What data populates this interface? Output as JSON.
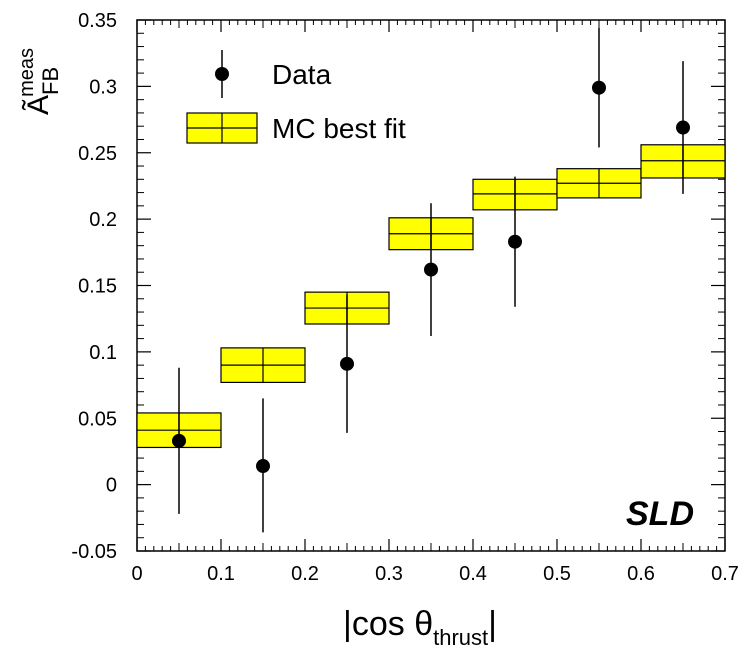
{
  "chart_data": {
    "type": "scatter",
    "xlabel": {
      "main": "|cos θ",
      "sub": "thrust",
      "end": "|"
    },
    "ylabel": {
      "main": "Ã",
      "sub": "FB",
      "sup": "meas"
    },
    "xlim": [
      0,
      0.7
    ],
    "ylim": [
      -0.05,
      0.35
    ],
    "xticks": [
      "0",
      "0.1",
      "0.2",
      "0.3",
      "0.4",
      "0.5",
      "0.6",
      "0.7"
    ],
    "yticks": [
      "-0.05",
      "0",
      "0.05",
      "0.1",
      "0.15",
      "0.2",
      "0.25",
      "0.3",
      "0.35"
    ],
    "series": [
      {
        "name": "Data",
        "marker": "filled-circle",
        "points": [
          {
            "x": 0.05,
            "y": 0.033,
            "ylow": -0.022,
            "yhigh": 0.088
          },
          {
            "x": 0.15,
            "y": 0.014,
            "ylow": -0.036,
            "yhigh": 0.065
          },
          {
            "x": 0.25,
            "y": 0.091,
            "ylow": 0.039,
            "yhigh": 0.143
          },
          {
            "x": 0.35,
            "y": 0.162,
            "ylow": 0.112,
            "yhigh": 0.212
          },
          {
            "x": 0.45,
            "y": 0.183,
            "ylow": 0.134,
            "yhigh": 0.232
          },
          {
            "x": 0.55,
            "y": 0.299,
            "ylow": 0.254,
            "yhigh": 0.344
          },
          {
            "x": 0.65,
            "y": 0.269,
            "ylow": 0.219,
            "yhigh": 0.319
          }
        ]
      },
      {
        "name": "MC best fit",
        "marker": "yellow-box",
        "color": "#ffff00",
        "boxes": [
          {
            "xlow": 0.0,
            "xhigh": 0.1,
            "y": 0.041,
            "ylow": 0.028,
            "yhigh": 0.054
          },
          {
            "xlow": 0.1,
            "xhigh": 0.2,
            "y": 0.09,
            "ylow": 0.077,
            "yhigh": 0.103
          },
          {
            "xlow": 0.2,
            "xhigh": 0.3,
            "y": 0.133,
            "ylow": 0.121,
            "yhigh": 0.145
          },
          {
            "xlow": 0.3,
            "xhigh": 0.4,
            "y": 0.189,
            "ylow": 0.177,
            "yhigh": 0.201
          },
          {
            "xlow": 0.4,
            "xhigh": 0.5,
            "y": 0.219,
            "ylow": 0.207,
            "yhigh": 0.23
          },
          {
            "xlow": 0.5,
            "xhigh": 0.6,
            "y": 0.227,
            "ylow": 0.216,
            "yhigh": 0.238
          },
          {
            "xlow": 0.6,
            "xhigh": 0.7,
            "y": 0.244,
            "ylow": 0.231,
            "yhigh": 0.256
          }
        ]
      }
    ],
    "legend": {
      "placement": "top-left",
      "entries": [
        "Data",
        "MC best fit"
      ]
    },
    "annotation": "SLD",
    "grid": false
  }
}
